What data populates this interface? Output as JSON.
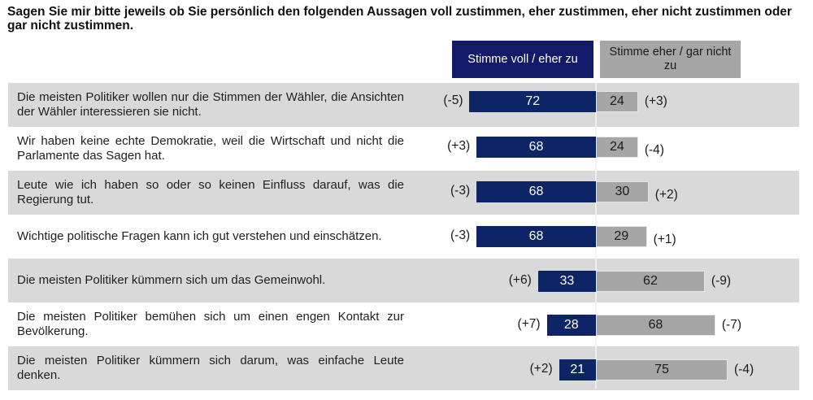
{
  "question": "Sagen Sie mir bitte jeweils ob Sie persönlich den folgenden Aussagen voll zustimmen, eher zustimmen, eher nicht zustimmen oder gar nicht zustimmen.",
  "legend": {
    "agree": "Stimme voll / eher zu",
    "disagree": "Stimme eher / gar nicht zu"
  },
  "colors": {
    "agree": "#0d2465",
    "legend_agree": "#141a6a",
    "disagree": "#a6a6a6",
    "row_shade": "#d9d9d9"
  },
  "chart_data": {
    "type": "bar",
    "orientation": "horizontal-diverging",
    "title": "Sagen Sie mir bitte jeweils ob Sie persönlich den folgenden Aussagen voll zustimmen, eher zustimmen, eher nicht zustimmen oder gar nicht zustimmen.",
    "xlabel": "",
    "ylabel": "",
    "unit": "%",
    "legend_position": "top",
    "categories": [
      "Die meisten Politiker wollen nur die Stimmen der Wähler, die Ansichten der Wähler interessieren sie nicht.",
      "Wir haben keine echte Demokratie, weil die Wirtschaft und nicht die Parlamente das Sagen hat.",
      "Leute wie ich haben so oder so keinen Einfluss darauf, was die Regierung tut.",
      "Wichtige politische Fragen kann ich gut verstehen und einschätzen.",
      "Die meisten Politiker kümmern sich um das Gemeinwohl.",
      "Die meisten Politiker bemühen sich um einen engen Kontakt zur Bevölkerung.",
      "Die meisten Politiker kümmern sich darum, was einfache Leute denken."
    ],
    "series": [
      {
        "name": "Stimme voll / eher zu",
        "values": [
          72,
          68,
          68,
          68,
          33,
          28,
          21
        ],
        "changes": [
          "(-5)",
          "(+3)",
          "(-3)",
          "(-3)",
          "(+6)",
          "(+7)",
          "(+2)"
        ]
      },
      {
        "name": "Stimme eher / gar nicht zu",
        "values": [
          24,
          24,
          30,
          29,
          62,
          68,
          75
        ],
        "changes": [
          "(+3)",
          "(-4)",
          "(+2)",
          "(+1)",
          "(-9)",
          "(-7)",
          "(-4)"
        ]
      }
    ]
  }
}
